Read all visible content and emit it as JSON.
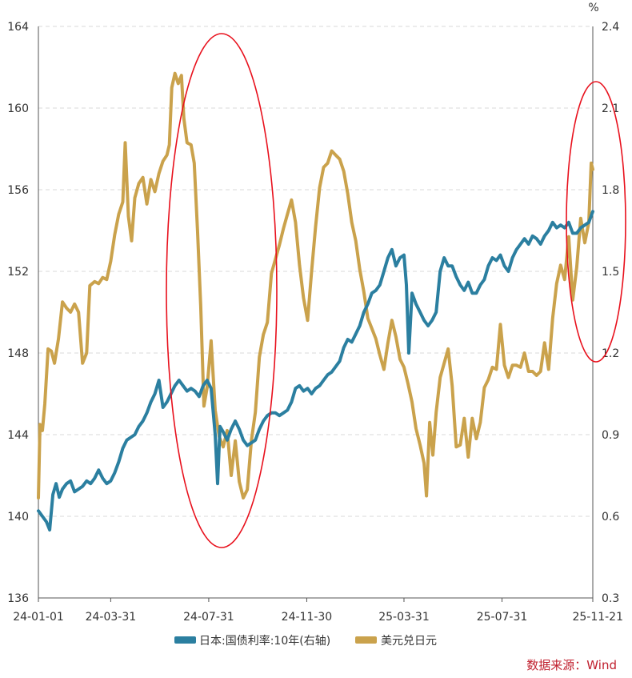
{
  "chart_data": {
    "type": "line",
    "title": "",
    "xlabel": "",
    "left_axis": {
      "ylim": [
        136,
        164
      ],
      "ticks": [
        136,
        140,
        144,
        148,
        152,
        156,
        160,
        164
      ]
    },
    "right_axis": {
      "unit": "%",
      "ylim": [
        0.3,
        2.4
      ],
      "ticks": [
        "0.3",
        "0.6",
        "0.9",
        "1.2",
        "1.5",
        "1.8",
        "2.1",
        "2.4"
      ]
    },
    "x_ticks": [
      "24-01-01",
      "24-03-31",
      "24-07-31",
      "24-11-30",
      "25-03-31",
      "25-07-31",
      "25-11-21"
    ],
    "x_tick_index": [
      0,
      90,
      212,
      334,
      455,
      577,
      690
    ],
    "x_range": [
      0,
      690
    ],
    "grid": true,
    "legend_position": "bottom",
    "series": [
      {
        "name": "日本:国债利率:10年(右轴)",
        "axis": "right",
        "color": "#2b7fa0",
        "points": [
          [
            0,
            0.62
          ],
          [
            5,
            0.6
          ],
          [
            10,
            0.58
          ],
          [
            14,
            0.55
          ],
          [
            18,
            0.68
          ],
          [
            22,
            0.72
          ],
          [
            26,
            0.67
          ],
          [
            30,
            0.7
          ],
          [
            35,
            0.72
          ],
          [
            40,
            0.73
          ],
          [
            45,
            0.69
          ],
          [
            50,
            0.7
          ],
          [
            55,
            0.71
          ],
          [
            60,
            0.73
          ],
          [
            65,
            0.72
          ],
          [
            70,
            0.74
          ],
          [
            75,
            0.77
          ],
          [
            80,
            0.74
          ],
          [
            85,
            0.72
          ],
          [
            90,
            0.73
          ],
          [
            95,
            0.76
          ],
          [
            100,
            0.8
          ],
          [
            105,
            0.85
          ],
          [
            110,
            0.88
          ],
          [
            115,
            0.89
          ],
          [
            120,
            0.9
          ],
          [
            125,
            0.93
          ],
          [
            130,
            0.95
          ],
          [
            135,
            0.98
          ],
          [
            140,
            1.02
          ],
          [
            145,
            1.05
          ],
          [
            150,
            1.1
          ],
          [
            155,
            1.0
          ],
          [
            160,
            1.02
          ],
          [
            165,
            1.05
          ],
          [
            170,
            1.08
          ],
          [
            175,
            1.1
          ],
          [
            180,
            1.08
          ],
          [
            185,
            1.06
          ],
          [
            190,
            1.07
          ],
          [
            195,
            1.06
          ],
          [
            200,
            1.04
          ],
          [
            205,
            1.08
          ],
          [
            210,
            1.1
          ],
          [
            215,
            1.07
          ],
          [
            220,
            0.9
          ],
          [
            223,
            0.72
          ],
          [
            226,
            0.93
          ],
          [
            230,
            0.91
          ],
          [
            235,
            0.88
          ],
          [
            240,
            0.92
          ],
          [
            245,
            0.95
          ],
          [
            250,
            0.92
          ],
          [
            255,
            0.88
          ],
          [
            260,
            0.86
          ],
          [
            265,
            0.87
          ],
          [
            270,
            0.88
          ],
          [
            275,
            0.92
          ],
          [
            280,
            0.95
          ],
          [
            285,
            0.97
          ],
          [
            290,
            0.98
          ],
          [
            295,
            0.98
          ],
          [
            300,
            0.97
          ],
          [
            305,
            0.98
          ],
          [
            310,
            0.99
          ],
          [
            315,
            1.02
          ],
          [
            320,
            1.07
          ],
          [
            325,
            1.08
          ],
          [
            330,
            1.06
          ],
          [
            335,
            1.07
          ],
          [
            340,
            1.05
          ],
          [
            345,
            1.07
          ],
          [
            350,
            1.08
          ],
          [
            355,
            1.1
          ],
          [
            360,
            1.12
          ],
          [
            365,
            1.13
          ],
          [
            370,
            1.15
          ],
          [
            375,
            1.17
          ],
          [
            380,
            1.22
          ],
          [
            385,
            1.25
          ],
          [
            390,
            1.24
          ],
          [
            395,
            1.27
          ],
          [
            400,
            1.3
          ],
          [
            405,
            1.35
          ],
          [
            410,
            1.38
          ],
          [
            415,
            1.42
          ],
          [
            420,
            1.43
          ],
          [
            425,
            1.45
          ],
          [
            430,
            1.5
          ],
          [
            435,
            1.55
          ],
          [
            440,
            1.58
          ],
          [
            445,
            1.52
          ],
          [
            450,
            1.55
          ],
          [
            455,
            1.56
          ],
          [
            458,
            1.45
          ],
          [
            461,
            1.2
          ],
          [
            465,
            1.42
          ],
          [
            470,
            1.38
          ],
          [
            475,
            1.35
          ],
          [
            480,
            1.32
          ],
          [
            485,
            1.3
          ],
          [
            490,
            1.32
          ],
          [
            495,
            1.35
          ],
          [
            500,
            1.5
          ],
          [
            505,
            1.55
          ],
          [
            510,
            1.52
          ],
          [
            515,
            1.52
          ],
          [
            520,
            1.48
          ],
          [
            525,
            1.45
          ],
          [
            530,
            1.43
          ],
          [
            535,
            1.46
          ],
          [
            540,
            1.42
          ],
          [
            545,
            1.42
          ],
          [
            550,
            1.45
          ],
          [
            555,
            1.47
          ],
          [
            560,
            1.52
          ],
          [
            565,
            1.55
          ],
          [
            570,
            1.54
          ],
          [
            575,
            1.56
          ],
          [
            580,
            1.52
          ],
          [
            585,
            1.5
          ],
          [
            590,
            1.55
          ],
          [
            595,
            1.58
          ],
          [
            600,
            1.6
          ],
          [
            605,
            1.62
          ],
          [
            610,
            1.6
          ],
          [
            615,
            1.63
          ],
          [
            620,
            1.62
          ],
          [
            625,
            1.6
          ],
          [
            630,
            1.63
          ],
          [
            635,
            1.65
          ],
          [
            640,
            1.68
          ],
          [
            645,
            1.66
          ],
          [
            650,
            1.67
          ],
          [
            655,
            1.66
          ],
          [
            660,
            1.68
          ],
          [
            665,
            1.64
          ],
          [
            670,
            1.64
          ],
          [
            675,
            1.66
          ],
          [
            680,
            1.67
          ],
          [
            685,
            1.68
          ],
          [
            690,
            1.72
          ]
        ]
      },
      {
        "name": "美元兑日元",
        "axis": "left",
        "color": "#caa24c",
        "points": [
          [
            0,
            140.9
          ],
          [
            2,
            144.5
          ],
          [
            5,
            144.2
          ],
          [
            8,
            145.5
          ],
          [
            12,
            148.2
          ],
          [
            16,
            148.1
          ],
          [
            20,
            147.5
          ],
          [
            25,
            148.7
          ],
          [
            30,
            150.5
          ],
          [
            35,
            150.2
          ],
          [
            40,
            150.0
          ],
          [
            45,
            150.4
          ],
          [
            50,
            150.0
          ],
          [
            55,
            147.5
          ],
          [
            60,
            148.0
          ],
          [
            64,
            151.3
          ],
          [
            70,
            151.5
          ],
          [
            75,
            151.4
          ],
          [
            80,
            151.7
          ],
          [
            85,
            151.6
          ],
          [
            90,
            152.5
          ],
          [
            95,
            153.8
          ],
          [
            100,
            154.8
          ],
          [
            105,
            155.4
          ],
          [
            108,
            158.3
          ],
          [
            112,
            154.7
          ],
          [
            116,
            153.5
          ],
          [
            120,
            155.6
          ],
          [
            125,
            156.3
          ],
          [
            130,
            156.6
          ],
          [
            135,
            155.3
          ],
          [
            140,
            156.5
          ],
          [
            145,
            155.9
          ],
          [
            150,
            156.8
          ],
          [
            155,
            157.4
          ],
          [
            160,
            157.7
          ],
          [
            163,
            158.2
          ],
          [
            166,
            161.0
          ],
          [
            170,
            161.7
          ],
          [
            174,
            161.2
          ],
          [
            178,
            161.6
          ],
          [
            181,
            159.5
          ],
          [
            185,
            158.3
          ],
          [
            190,
            158.2
          ],
          [
            194,
            157.3
          ],
          [
            198,
            154.0
          ],
          [
            202,
            150.3
          ],
          [
            206,
            145.4
          ],
          [
            210,
            146.3
          ],
          [
            215,
            148.6
          ],
          [
            220,
            145.2
          ],
          [
            225,
            143.9
          ],
          [
            230,
            143.4
          ],
          [
            235,
            144.2
          ],
          [
            240,
            142.0
          ],
          [
            245,
            143.7
          ],
          [
            250,
            141.7
          ],
          [
            255,
            140.9
          ],
          [
            260,
            141.3
          ],
          [
            265,
            143.7
          ],
          [
            270,
            145.1
          ],
          [
            275,
            147.8
          ],
          [
            280,
            148.9
          ],
          [
            285,
            149.5
          ],
          [
            290,
            151.9
          ],
          [
            295,
            152.6
          ],
          [
            300,
            153.3
          ],
          [
            305,
            154.1
          ],
          [
            310,
            154.8
          ],
          [
            315,
            155.5
          ],
          [
            320,
            154.4
          ],
          [
            325,
            152.3
          ],
          [
            330,
            150.7
          ],
          [
            335,
            149.6
          ],
          [
            340,
            152.0
          ],
          [
            345,
            154.2
          ],
          [
            350,
            156.1
          ],
          [
            355,
            157.1
          ],
          [
            360,
            157.3
          ],
          [
            365,
            157.9
          ],
          [
            370,
            157.7
          ],
          [
            375,
            157.5
          ],
          [
            380,
            156.9
          ],
          [
            385,
            155.8
          ],
          [
            390,
            154.4
          ],
          [
            395,
            153.5
          ],
          [
            400,
            152.1
          ],
          [
            405,
            151.0
          ],
          [
            410,
            149.7
          ],
          [
            415,
            149.2
          ],
          [
            420,
            148.7
          ],
          [
            425,
            147.9
          ],
          [
            430,
            147.2
          ],
          [
            435,
            148.5
          ],
          [
            440,
            149.6
          ],
          [
            445,
            148.8
          ],
          [
            450,
            147.7
          ],
          [
            455,
            147.3
          ],
          [
            460,
            146.5
          ],
          [
            465,
            145.6
          ],
          [
            470,
            144.3
          ],
          [
            475,
            143.5
          ],
          [
            480,
            142.6
          ],
          [
            483,
            141.0
          ],
          [
            487,
            144.6
          ],
          [
            491,
            143.0
          ],
          [
            495,
            145.1
          ],
          [
            500,
            146.8
          ],
          [
            505,
            147.5
          ],
          [
            510,
            148.2
          ],
          [
            515,
            146.4
          ],
          [
            520,
            143.4
          ],
          [
            525,
            143.5
          ],
          [
            530,
            144.8
          ],
          [
            535,
            142.9
          ],
          [
            540,
            144.8
          ],
          [
            545,
            143.8
          ],
          [
            550,
            144.6
          ],
          [
            555,
            146.3
          ],
          [
            560,
            146.7
          ],
          [
            565,
            147.3
          ],
          [
            570,
            147.2
          ],
          [
            575,
            149.4
          ],
          [
            580,
            147.4
          ],
          [
            585,
            146.8
          ],
          [
            590,
            147.4
          ],
          [
            595,
            147.4
          ],
          [
            600,
            147.3
          ],
          [
            605,
            148.0
          ],
          [
            610,
            147.1
          ],
          [
            615,
            147.1
          ],
          [
            620,
            146.9
          ],
          [
            625,
            147.1
          ],
          [
            630,
            148.5
          ],
          [
            635,
            147.2
          ],
          [
            640,
            149.7
          ],
          [
            645,
            151.4
          ],
          [
            650,
            152.3
          ],
          [
            655,
            151.6
          ],
          [
            660,
            153.7
          ],
          [
            665,
            150.6
          ],
          [
            670,
            152.2
          ],
          [
            675,
            154.6
          ],
          [
            680,
            153.4
          ],
          [
            685,
            154.4
          ],
          [
            688,
            157.3
          ],
          [
            690,
            157.0
          ]
        ]
      }
    ],
    "annotations": [
      {
        "type": "ellipse",
        "color": "#e8101c",
        "range": [
          "24-07-31"
        ]
      },
      {
        "type": "ellipse",
        "color": "#e8101c",
        "range": [
          "25-11-21"
        ]
      }
    ]
  },
  "source_note": "数据来源：Wind"
}
